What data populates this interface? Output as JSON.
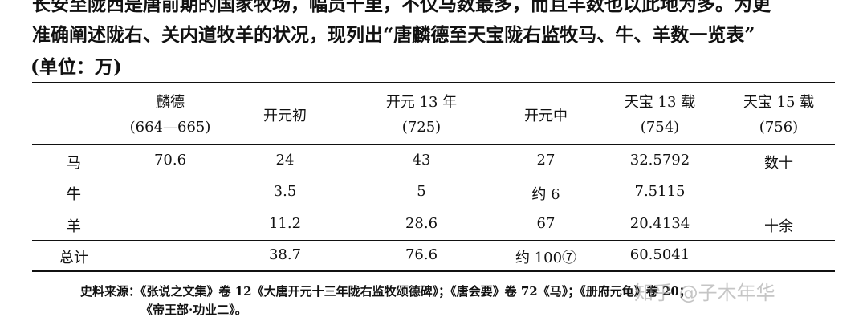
{
  "paragraph": {
    "line0": "长安至陇西是唐前期的国家牧场，幅员千里，不仅马数最多，而且羊数也以此地为多。为更",
    "line1": "准确阐述陇右、关内道牧羊的状况，现列出“唐麟德至天宝陇右监牧马、牛、羊数一览表”",
    "line2": "(单位：万)"
  },
  "table": {
    "headers": [
      {
        "l1": "麟德",
        "l2": "(664—665)"
      },
      {
        "l1": "开元初",
        "l2": ""
      },
      {
        "l1": "开元 13 年",
        "l2": "(725)"
      },
      {
        "l1": "开元中",
        "l2": ""
      },
      {
        "l1": "天宝 13 载",
        "l2": "(754)"
      },
      {
        "l1": "天宝 15 载",
        "l2": "(756)"
      }
    ],
    "rows": [
      {
        "label": "马",
        "values": [
          "70.6",
          "24",
          "43",
          "27",
          "32.5792",
          "数十"
        ]
      },
      {
        "label": "牛",
        "values": [
          "",
          "3.5",
          "5",
          "约 6",
          "7.5115",
          ""
        ]
      },
      {
        "label": "羊",
        "values": [
          "",
          "11.2",
          "28.6",
          "67",
          "20.4134",
          "十余"
        ]
      },
      {
        "label": "总计",
        "values": [
          "",
          "38.7",
          "76.6",
          "约 100⑦",
          "60.5041",
          ""
        ]
      }
    ]
  },
  "source": {
    "line1": "史料来源：《张说之文集》卷 12《大唐开元十三年陇右监牧颂德碑》；《唐会要》卷 72《马》；《册府元龟》卷 20；",
    "line2": "《帝王部·功业二》。"
  },
  "watermark": "知乎 @子木年华"
}
